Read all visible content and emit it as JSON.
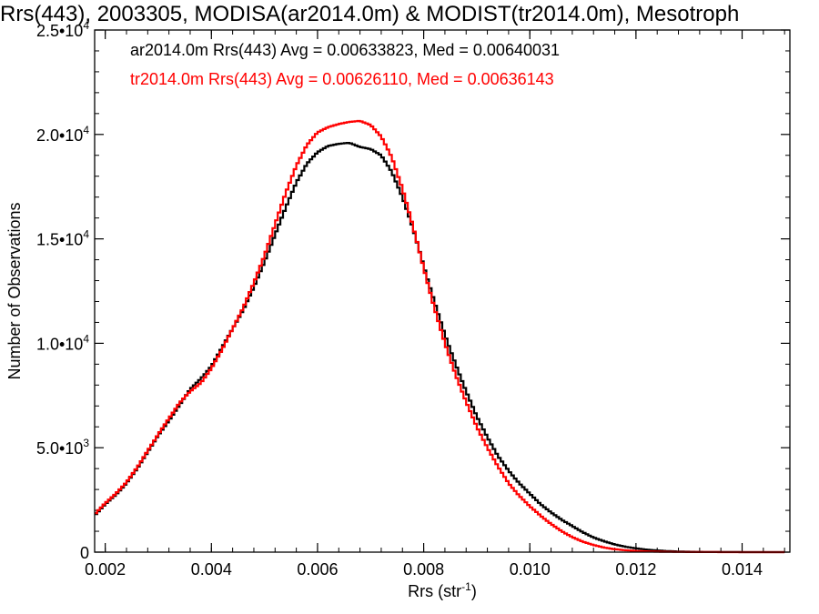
{
  "chart_data": {
    "type": "line",
    "title": "Rrs(443), 2003305, MODISA(ar2014.0m) & MODIST(tr2014.0m), Mesotroph",
    "xlabel": "Rrs (str",
    "xlabel_sup": "-1",
    "xlabel_close": ")",
    "ylabel": "Number of Observations",
    "xlim": [
      0.0018,
      0.0149
    ],
    "ylim": [
      0,
      25000
    ],
    "grid": false,
    "legend_placement": "top-left",
    "x_ticks": [
      {
        "value": 0.002,
        "label": "0.002"
      },
      {
        "value": 0.004,
        "label": "0.004"
      },
      {
        "value": 0.006,
        "label": "0.006"
      },
      {
        "value": 0.008,
        "label": "0.008"
      },
      {
        "value": 0.01,
        "label": "0.010"
      },
      {
        "value": 0.012,
        "label": "0.012"
      },
      {
        "value": 0.014,
        "label": "0.014"
      }
    ],
    "y_ticks": [
      {
        "value": 0,
        "mant": "0",
        "exp": ""
      },
      {
        "value": 5000,
        "mant": "5.0•10",
        "exp": "3"
      },
      {
        "value": 10000,
        "mant": "1.0•10",
        "exp": "4"
      },
      {
        "value": 15000,
        "mant": "1.5•10",
        "exp": "4"
      },
      {
        "value": 20000,
        "mant": "2.0•10",
        "exp": "4"
      },
      {
        "value": 25000,
        "mant": "2.5•10",
        "exp": "4"
      }
    ],
    "series": [
      {
        "name": "ar2014.0m Rrs(443) Avg = 0.00633823, Med = 0.00640031",
        "color": "#000000",
        "x": [
          0.0018,
          0.002,
          0.0022,
          0.0024,
          0.0026,
          0.0028,
          0.003,
          0.0032,
          0.0034,
          0.0036,
          0.0038,
          0.004,
          0.0042,
          0.0044,
          0.0046,
          0.0048,
          0.005,
          0.0052,
          0.0054,
          0.0056,
          0.0058,
          0.006,
          0.0062,
          0.0064,
          0.0066,
          0.0068,
          0.007,
          0.0072,
          0.0074,
          0.0076,
          0.0078,
          0.008,
          0.0082,
          0.0084,
          0.0086,
          0.0088,
          0.009,
          0.0092,
          0.0094,
          0.0096,
          0.0098,
          0.01,
          0.0102,
          0.0104,
          0.0106,
          0.0108,
          0.011,
          0.0112,
          0.0114,
          0.0116,
          0.0118,
          0.012,
          0.0122,
          0.0124,
          0.0126,
          0.0128,
          0.013,
          0.0132,
          0.0134,
          0.0136,
          0.0138,
          0.014,
          0.0142,
          0.0144,
          0.0146,
          0.0148
        ],
        "values": [
          1750,
          2300,
          2750,
          3300,
          4000,
          4800,
          5600,
          6300,
          7050,
          7800,
          8300,
          8900,
          9800,
          10700,
          11600,
          12700,
          13900,
          15200,
          16500,
          17700,
          18600,
          19150,
          19450,
          19550,
          19600,
          19400,
          19300,
          19000,
          18200,
          17000,
          15500,
          13700,
          12000,
          10400,
          9000,
          7700,
          6500,
          5500,
          4600,
          3900,
          3300,
          2800,
          2300,
          1900,
          1550,
          1250,
          950,
          700,
          520,
          370,
          260,
          180,
          120,
          80,
          50,
          30,
          20,
          12,
          8,
          5,
          3,
          2,
          1,
          1,
          0,
          0
        ]
      },
      {
        "name": "tr2014.0m Rrs(443) Avg = 0.00626110, Med = 0.00636143",
        "color": "#ff0000",
        "x": [
          0.0018,
          0.002,
          0.0022,
          0.0024,
          0.0026,
          0.0028,
          0.003,
          0.0032,
          0.0034,
          0.0036,
          0.0038,
          0.004,
          0.0042,
          0.0044,
          0.0046,
          0.0048,
          0.005,
          0.0052,
          0.0054,
          0.0056,
          0.0058,
          0.006,
          0.0062,
          0.0064,
          0.0066,
          0.0068,
          0.007,
          0.0072,
          0.0074,
          0.0076,
          0.0078,
          0.008,
          0.0082,
          0.0084,
          0.0086,
          0.0088,
          0.009,
          0.0092,
          0.0094,
          0.0096,
          0.0098,
          0.01,
          0.0102,
          0.0104,
          0.0106,
          0.0108,
          0.011,
          0.0112,
          0.0114,
          0.0116,
          0.0118,
          0.012,
          0.0122,
          0.0124,
          0.0126,
          0.0128,
          0.013,
          0.0132,
          0.0134,
          0.0136,
          0.0138,
          0.014,
          0.0142,
          0.0144,
          0.0146,
          0.0148
        ],
        "values": [
          1800,
          2350,
          2800,
          3350,
          4050,
          4850,
          5650,
          6400,
          7150,
          7700,
          8100,
          8800,
          9700,
          10700,
          11700,
          12900,
          14200,
          15700,
          17200,
          18500,
          19500,
          20100,
          20350,
          20500,
          20600,
          20650,
          20450,
          19900,
          18900,
          17400,
          15600,
          13600,
          11700,
          10000,
          8500,
          7200,
          6000,
          5000,
          4100,
          3300,
          2700,
          2200,
          1750,
          1350,
          1000,
          720,
          500,
          340,
          220,
          140,
          90,
          55,
          35,
          22,
          14,
          9,
          6,
          4,
          3,
          2,
          1,
          1,
          0,
          0,
          0,
          0
        ]
      }
    ]
  }
}
